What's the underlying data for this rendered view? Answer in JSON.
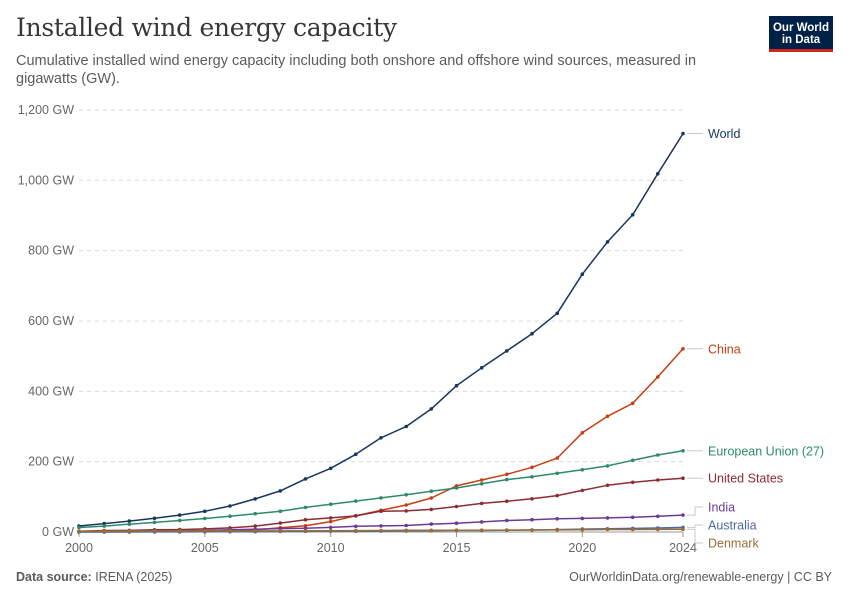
{
  "header": {
    "title": "Installed wind energy capacity",
    "subtitle": "Cumulative installed wind energy capacity including both onshore and offshore wind sources, measured in gigawatts (GW).",
    "logo_line1": "Our World",
    "logo_line2": "in Data"
  },
  "footer": {
    "source_label": "Data source:",
    "source_value": "IRENA (2025)",
    "url_credit": "OurWorldinData.org/renewable-energy | CC BY"
  },
  "colors": {
    "World": "#18365f",
    "China": "#c53f14",
    "European Union (27)": "#2d8a6b",
    "United States": "#8b2d34",
    "India": "#6c3b91",
    "Australia": "#4c6a9c",
    "Denmark": "#996d39",
    "gridline": "#d9d9d9",
    "axis": "#999999"
  },
  "chart_data": {
    "type": "line",
    "title": "Installed wind energy capacity",
    "ylim": [
      0,
      1200
    ],
    "y_ticks": [
      0,
      200,
      400,
      600,
      800,
      1000,
      1200
    ],
    "y_tick_labels": [
      "0 GW",
      "200 GW",
      "400 GW",
      "600 GW",
      "800 GW",
      "1,000 GW",
      "1,200 GW"
    ],
    "x_ticks": [
      2000,
      2005,
      2010,
      2015,
      2020,
      2024
    ],
    "x_tick_labels": [
      "2000",
      "2005",
      "2010",
      "2015",
      "2020",
      "2024"
    ],
    "xlim": [
      2000,
      2024
    ],
    "grid": true,
    "legend": "line-end labels right",
    "x": [
      2000,
      2001,
      2002,
      2003,
      2004,
      2005,
      2006,
      2007,
      2008,
      2009,
      2010,
      2011,
      2012,
      2013,
      2014,
      2015,
      2016,
      2017,
      2018,
      2019,
      2020,
      2021,
      2022,
      2023,
      2024
    ],
    "series": [
      {
        "name": "World",
        "values": [
          17,
          24,
          31,
          39,
          48,
          59,
          74,
          94,
          117,
          151,
          181,
          221,
          268,
          300,
          350,
          416,
          467,
          515,
          564,
          622,
          733,
          825,
          902,
          1019,
          1133
        ]
      },
      {
        "name": "China",
        "values": [
          0.3,
          0.4,
          0.5,
          0.6,
          0.8,
          1.3,
          2.6,
          5.9,
          12,
          17.6,
          29.6,
          46.4,
          61.6,
          76.7,
          96.8,
          131,
          148,
          164,
          184,
          210,
          282,
          329,
          366,
          441,
          521
        ]
      },
      {
        "name": "European Union (27)",
        "values": [
          12.9,
          16.7,
          22.3,
          27.4,
          32.6,
          38.3,
          44.9,
          52.1,
          59.1,
          70,
          79,
          88,
          97,
          106,
          116,
          125,
          137,
          149,
          157,
          167,
          177,
          188,
          204,
          219,
          231
        ]
      },
      {
        "name": "United States",
        "values": [
          2.4,
          4.2,
          4.5,
          6.2,
          6.7,
          8.9,
          11.6,
          16.9,
          25.4,
          34.9,
          40.2,
          45.7,
          59.1,
          60,
          64.2,
          72.6,
          81.3,
          87.6,
          94.4,
          103.6,
          118.3,
          132.7,
          141.2,
          148,
          153
        ]
      },
      {
        "name": "India",
        "values": [
          1.2,
          1.5,
          1.7,
          2.1,
          3,
          4.4,
          6.3,
          7.8,
          9.6,
          10.9,
          13.2,
          16.1,
          17.4,
          18.4,
          22.5,
          25.1,
          28.7,
          32.8,
          35.1,
          37.5,
          38.6,
          40.1,
          41.9,
          44.7,
          48
        ]
      },
      {
        "name": "Australia",
        "values": [
          0.03,
          0.07,
          0.1,
          0.2,
          0.4,
          0.7,
          0.8,
          0.8,
          1.3,
          1.7,
          1.9,
          2.2,
          2.6,
          3.2,
          3.8,
          4.2,
          4.3,
          4.8,
          5.6,
          6.9,
          8.3,
          9.1,
          10.1,
          11.4,
          13
        ]
      },
      {
        "name": "Denmark",
        "values": [
          2.4,
          2.5,
          2.9,
          3.1,
          3.1,
          3.1,
          3.1,
          3.1,
          3.2,
          3.5,
          3.8,
          3.9,
          4.2,
          4.8,
          4.9,
          5.1,
          5.2,
          5.5,
          5.8,
          6.1,
          6.2,
          7,
          7.1,
          7.4,
          7.8
        ]
      }
    ]
  }
}
